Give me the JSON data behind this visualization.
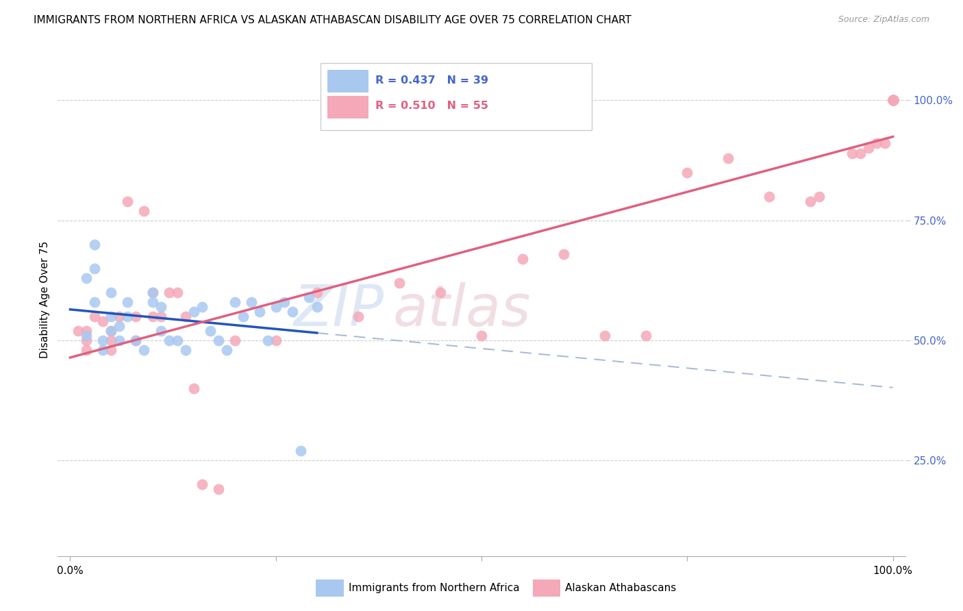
{
  "title": "IMMIGRANTS FROM NORTHERN AFRICA VS ALASKAN ATHABASCAN DISABILITY AGE OVER 75 CORRELATION CHART",
  "source": "Source: ZipAtlas.com",
  "ylabel": "Disability Age Over 75",
  "legend_blue_label": "Immigrants from Northern Africa",
  "legend_pink_label": "Alaskan Athabascans",
  "blue_color": "#a8c8f0",
  "pink_color": "#f5a8b8",
  "blue_line_color": "#2255bb",
  "pink_line_color": "#e06080",
  "blue_dashed_color": "#aabbd8",
  "grid_color": "#cccccc",
  "right_axis_color": "#4466cc",
  "blue_r": "R = 0.437",
  "blue_n": "N = 39",
  "pink_r": "R = 0.510",
  "pink_n": "N = 55",
  "blue_points_x": [
    0.2,
    0.2,
    0.3,
    0.3,
    0.3,
    0.4,
    0.4,
    0.5,
    0.5,
    0.5,
    0.6,
    0.6,
    0.7,
    0.7,
    0.8,
    0.9,
    1.0,
    1.0,
    1.1,
    1.1,
    1.2,
    1.3,
    1.4,
    1.5,
    1.6,
    1.7,
    1.8,
    1.9,
    2.0,
    2.1,
    2.2,
    2.3,
    2.4,
    2.5,
    2.6,
    2.7,
    2.8,
    2.9,
    3.0
  ],
  "blue_points_y": [
    51,
    63,
    58,
    70,
    65,
    50,
    48,
    52,
    55,
    60,
    50,
    53,
    55,
    58,
    50,
    48,
    60,
    58,
    57,
    52,
    50,
    50,
    48,
    56,
    57,
    52,
    50,
    48,
    58,
    55,
    58,
    56,
    50,
    57,
    58,
    56,
    27,
    59,
    57
  ],
  "pink_points_x": [
    0.1,
    0.2,
    0.2,
    0.2,
    0.3,
    0.4,
    0.5,
    0.5,
    0.5,
    0.6,
    0.7,
    0.8,
    0.8,
    0.9,
    1.0,
    1.0,
    1.1,
    1.2,
    1.3,
    1.4,
    1.5,
    1.6,
    1.8,
    2.0,
    2.5,
    3.0,
    3.5,
    4.0,
    4.5,
    5.0,
    5.5,
    6.0,
    6.5,
    7.0,
    7.5,
    8.0,
    8.5,
    9.0,
    9.1,
    9.5,
    9.6,
    9.7,
    9.8,
    9.9,
    10.0,
    10.0,
    10.0,
    10.0,
    10.0,
    10.0,
    10.0,
    10.0,
    10.0,
    10.0,
    10.0
  ],
  "pink_points_y": [
    52,
    52,
    48,
    50,
    55,
    54,
    52,
    50,
    48,
    55,
    79,
    50,
    55,
    77,
    60,
    55,
    55,
    60,
    60,
    55,
    40,
    20,
    19,
    50,
    50,
    60,
    55,
    62,
    60,
    51,
    67,
    68,
    51,
    51,
    85,
    88,
    80,
    79,
    80,
    89,
    89,
    90,
    91,
    91,
    100,
    100,
    100,
    100,
    100,
    100,
    100,
    100,
    100,
    100,
    100
  ],
  "xlim_pct": [
    0.0,
    10.0
  ],
  "ylim_pct": [
    0.0,
    110.0
  ],
  "blue_reg_x0": 0.0,
  "blue_reg_x1": 3.0,
  "blue_reg_slope": 1.8,
  "blue_reg_intercept": 44.0,
  "pink_reg_x0": 0.0,
  "pink_reg_x1": 10.0,
  "pink_reg_slope": 4.2,
  "pink_reg_intercept": 49.0
}
